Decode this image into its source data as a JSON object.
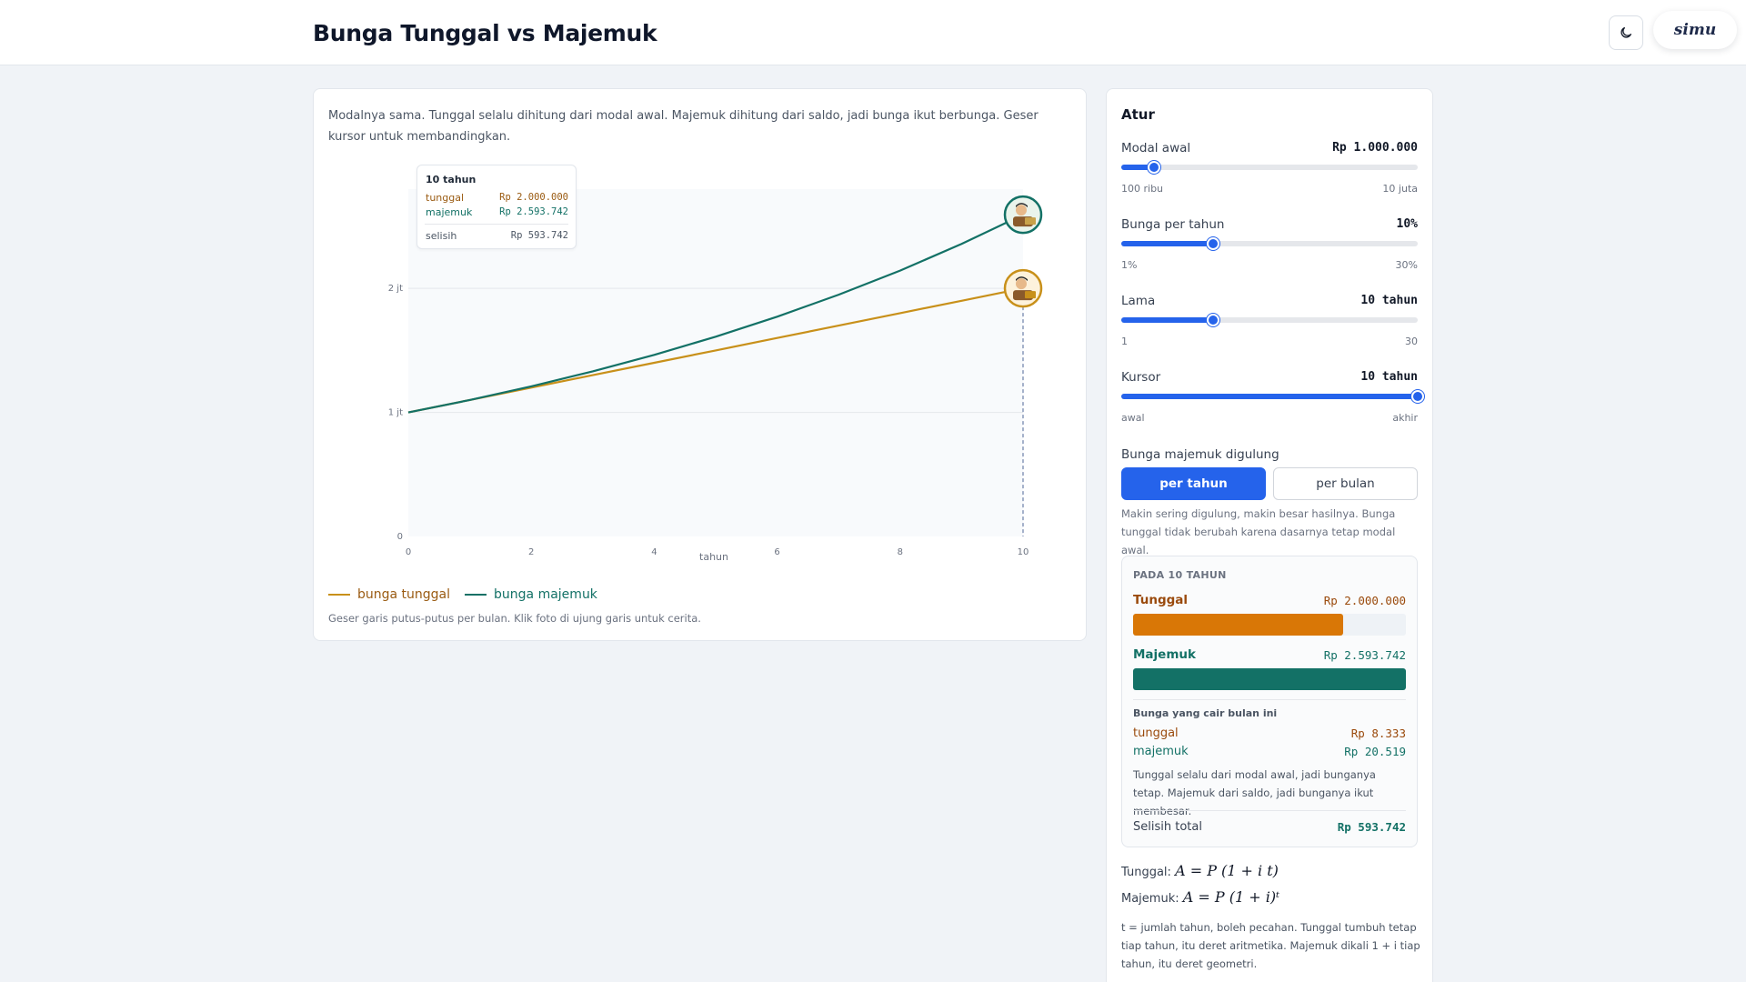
{
  "header": {
    "title": "Bunga Tunggal vs Majemuk",
    "logo": "simu",
    "theme_icon": "moon-icon"
  },
  "intro": "Modalnya sama. Tunggal selalu dihitung dari modal awal. Majemuk dihitung dari saldo, jadi bunga ikut berbunga. Geser kursor untuk membandingkan.",
  "colors": {
    "tunggal": "#c8901a",
    "majemuk": "#137166",
    "accent": "#2563eb",
    "cursor": "#6b7ea8"
  },
  "chart_data": {
    "type": "line",
    "x": [
      0,
      1,
      2,
      3,
      4,
      5,
      6,
      7,
      8,
      9,
      10
    ],
    "series": [
      {
        "name": "bunga tunggal",
        "values": [
          1000000,
          1100000,
          1200000,
          1300000,
          1400000,
          1500000,
          1600000,
          1700000,
          1800000,
          1900000,
          2000000
        ]
      },
      {
        "name": "bunga majemuk",
        "values": [
          1000000,
          1100000,
          1210000,
          1331000,
          1464100,
          1610510,
          1771561,
          1948717,
          2143589,
          2357948,
          2593742
        ]
      }
    ],
    "xlabel": "tahun",
    "ylabel": "",
    "xlim": [
      0,
      10
    ],
    "ylim": [
      0,
      2800000
    ],
    "xticks": [
      0,
      2,
      4,
      6,
      8,
      10
    ],
    "yticks": [
      {
        "value": 0,
        "label": "0"
      },
      {
        "value": 1000000,
        "label": "1 jt"
      },
      {
        "value": 2000000,
        "label": "2 jt"
      }
    ],
    "cursor_x": 10,
    "grid": true,
    "legend_position": "bottom-left"
  },
  "tooltip": {
    "title": "10 tahun",
    "tunggal_label": "tunggal",
    "tunggal_value": "Rp 2.000.000",
    "majemuk_label": "majemuk",
    "majemuk_value": "Rp 2.593.742",
    "selisih_label": "selisih",
    "selisih_value": "Rp 593.742"
  },
  "legend": {
    "tunggal": "bunga tunggal",
    "majemuk": "bunga majemuk"
  },
  "hint": "Geser garis putus-putus per bulan. Klik foto di ujung garis untuk cerita.",
  "panel": {
    "title": "Atur",
    "controls": [
      {
        "label": "Modal awal",
        "value": "Rp 1.000.000",
        "min": "100 ribu",
        "max": "10 juta",
        "fraction": 0.11
      },
      {
        "label": "Bunga per tahun",
        "value": "10%",
        "min": "1%",
        "max": "30%",
        "fraction": 0.31
      },
      {
        "label": "Lama",
        "value": "10 tahun",
        "min": "1",
        "max": "30",
        "fraction": 0.31
      },
      {
        "label": "Kursor",
        "value": "10 tahun",
        "min": "awal",
        "max": "akhir",
        "fraction": 1.0
      }
    ],
    "compounding": {
      "label": "Bunga majemuk digulung",
      "options": [
        "per tahun",
        "per bulan"
      ],
      "selected": "per tahun",
      "note": "Makin sering digulung, makin besar hasilnya. Bunga tunggal tidak berubah karena dasarnya tetap modal awal."
    },
    "result": {
      "heading": "PADA 10 TAHUN",
      "tunggal_name": "Tunggal",
      "tunggal_value": "Rp 2.000.000",
      "tunggal_fraction": 0.771,
      "majemuk_name": "Majemuk",
      "majemuk_value": "Rp 2.593.742",
      "majemuk_fraction": 1.0,
      "monthly_title": "Bunga yang cair bulan ini",
      "monthly_tunggal_label": "tunggal",
      "monthly_tunggal_value": "Rp 8.333",
      "monthly_majemuk_label": "majemuk",
      "monthly_majemuk_value": "Rp 20.519",
      "note": "Tunggal selalu dari modal awal, jadi bunganya tetap. Majemuk dari saldo, jadi bunganya ikut membesar.",
      "total_label": "Selisih total",
      "total_value": "Rp 593.742"
    },
    "formulas": {
      "tunggal_label": "Tunggal:",
      "tunggal_formula": "A = P (1 + i t)",
      "majemuk_label": "Majemuk:",
      "majemuk_formula": "A = P (1 + i)ᵗ"
    },
    "footnote": "t = jumlah tahun, boleh pecahan. Tunggal tumbuh tetap tiap tahun, itu deret aritmetika. Majemuk dikali 1 + i tiap tahun, itu deret geometri."
  }
}
